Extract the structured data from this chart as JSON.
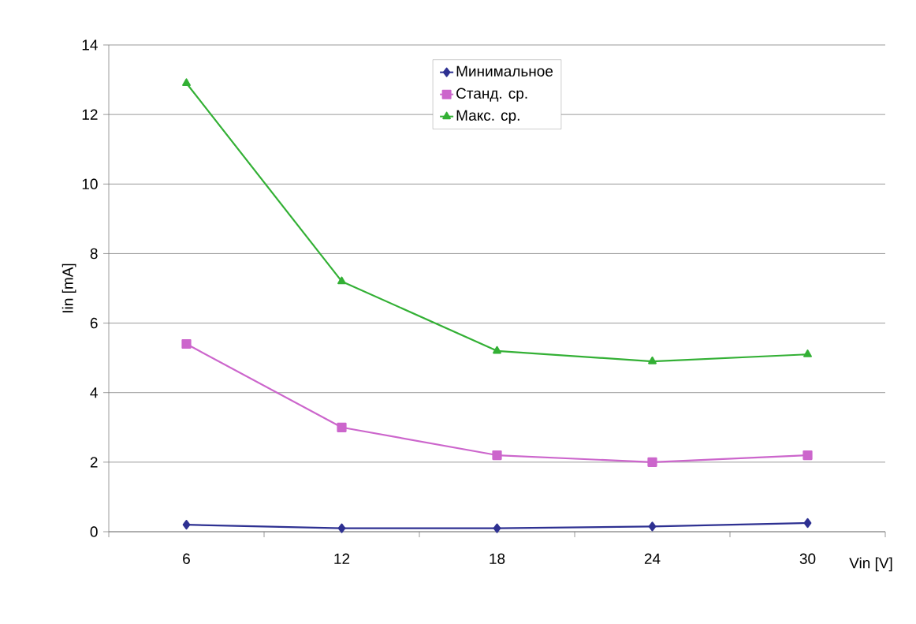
{
  "chart_data": {
    "type": "line",
    "xlabel": "Vin [V]",
    "ylabel": "Iin [mA]",
    "categories": [
      "6",
      "12",
      "18",
      "24",
      "30"
    ],
    "series": [
      {
        "name": "Минимальное",
        "color": "#2e3192",
        "marker": "diamond",
        "values": [
          0.2,
          0.1,
          0.1,
          0.15,
          0.25
        ]
      },
      {
        "name": "Станд. ср.",
        "color": "#cc66cc",
        "marker": "square",
        "values": [
          5.4,
          3.0,
          2.2,
          2.0,
          2.2
        ]
      },
      {
        "name": "Макс. ср.",
        "color": "#33b035",
        "marker": "triangle",
        "values": [
          12.9,
          7.2,
          5.2,
          4.9,
          5.1
        ]
      }
    ],
    "ylim": [
      0,
      14
    ],
    "yticks": [
      0,
      2,
      4,
      6,
      8,
      10,
      12,
      14
    ],
    "grid": "y",
    "legend": "top",
    "line_style": "solid"
  }
}
